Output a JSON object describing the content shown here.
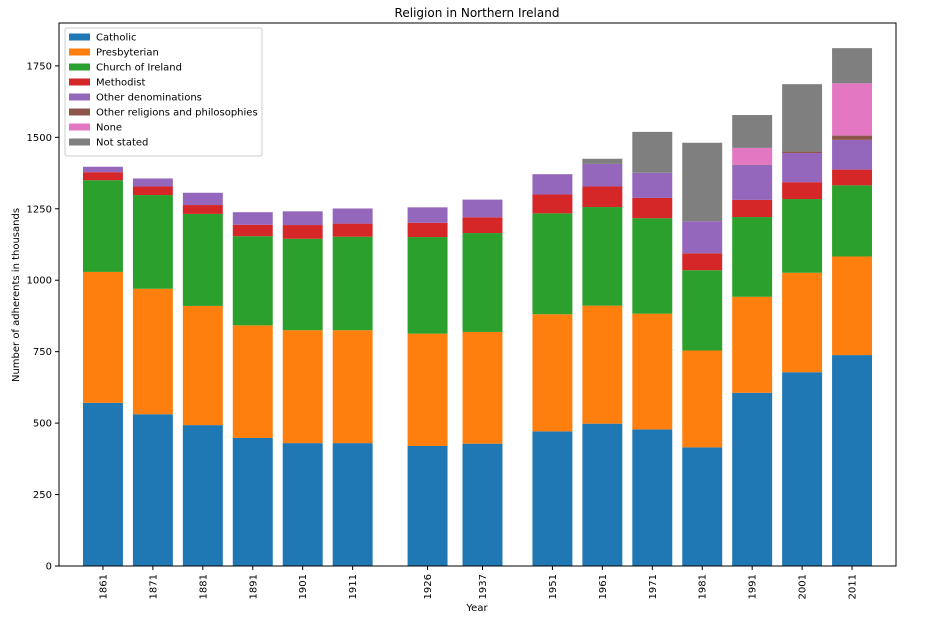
{
  "chart_data": {
    "type": "bar",
    "stacked": true,
    "title": "Religion in Northern Ireland",
    "xlabel": "Year",
    "ylabel": "Number of adherents in thousands",
    "ylim": [
      0,
      1900
    ],
    "yticks": [
      0,
      250,
      500,
      750,
      1000,
      1250,
      1500,
      1750
    ],
    "x": [
      1861,
      1871,
      1881,
      1891,
      1901,
      1911,
      1926,
      1937,
      1951,
      1961,
      1971,
      1981,
      1991,
      2001,
      2011
    ],
    "categories": [
      "1861",
      "1871",
      "1881",
      "1891",
      "1901",
      "1911",
      "1926",
      "1937",
      "1951",
      "1961",
      "1971",
      "1981",
      "1991",
      "2001",
      "2011"
    ],
    "legend_position": "upper-left",
    "grid": false,
    "series": [
      {
        "name": "Catholic",
        "color": "#1f77b4",
        "values": [
          571,
          531,
          493,
          448,
          430,
          430,
          420,
          428,
          471,
          498,
          478,
          415,
          606,
          678,
          738
        ]
      },
      {
        "name": "Presbyterian",
        "color": "#ff7f0e",
        "values": [
          458,
          439,
          417,
          394,
          395,
          395,
          393,
          391,
          410,
          413,
          405,
          339,
          336,
          348,
          345
        ]
      },
      {
        "name": "Church of Ireland",
        "color": "#2ca02c",
        "values": [
          321,
          328,
          322,
          312,
          320,
          327,
          338,
          346,
          353,
          345,
          334,
          281,
          279,
          258,
          249
        ]
      },
      {
        "name": "Methodist",
        "color": "#d62728",
        "values": [
          28,
          30,
          31,
          40,
          48,
          46,
          50,
          55,
          66,
          72,
          71,
          59,
          60,
          59,
          55
        ]
      },
      {
        "name": "Other denominations",
        "color": "#9467bd",
        "values": [
          19,
          28,
          43,
          44,
          48,
          53,
          54,
          62,
          71,
          79,
          88,
          112,
          122,
          102,
          104
        ]
      },
      {
        "name": "Other religions and philosophies",
        "color": "#8c564b",
        "values": [
          0,
          0,
          0,
          0,
          0,
          0,
          0,
          0,
          0,
          0,
          0,
          0,
          1,
          5,
          15
        ]
      },
      {
        "name": "None",
        "color": "#e377c2",
        "values": [
          0,
          0,
          0,
          0,
          0,
          0,
          0,
          0,
          0,
          0,
          0,
          0,
          59,
          0,
          183
        ]
      },
      {
        "name": "Not stated",
        "color": "#7f7f7f",
        "values": [
          0,
          0,
          0,
          0,
          0,
          0,
          0,
          0,
          0,
          18,
          143,
          275,
          115,
          236,
          123
        ]
      }
    ]
  }
}
